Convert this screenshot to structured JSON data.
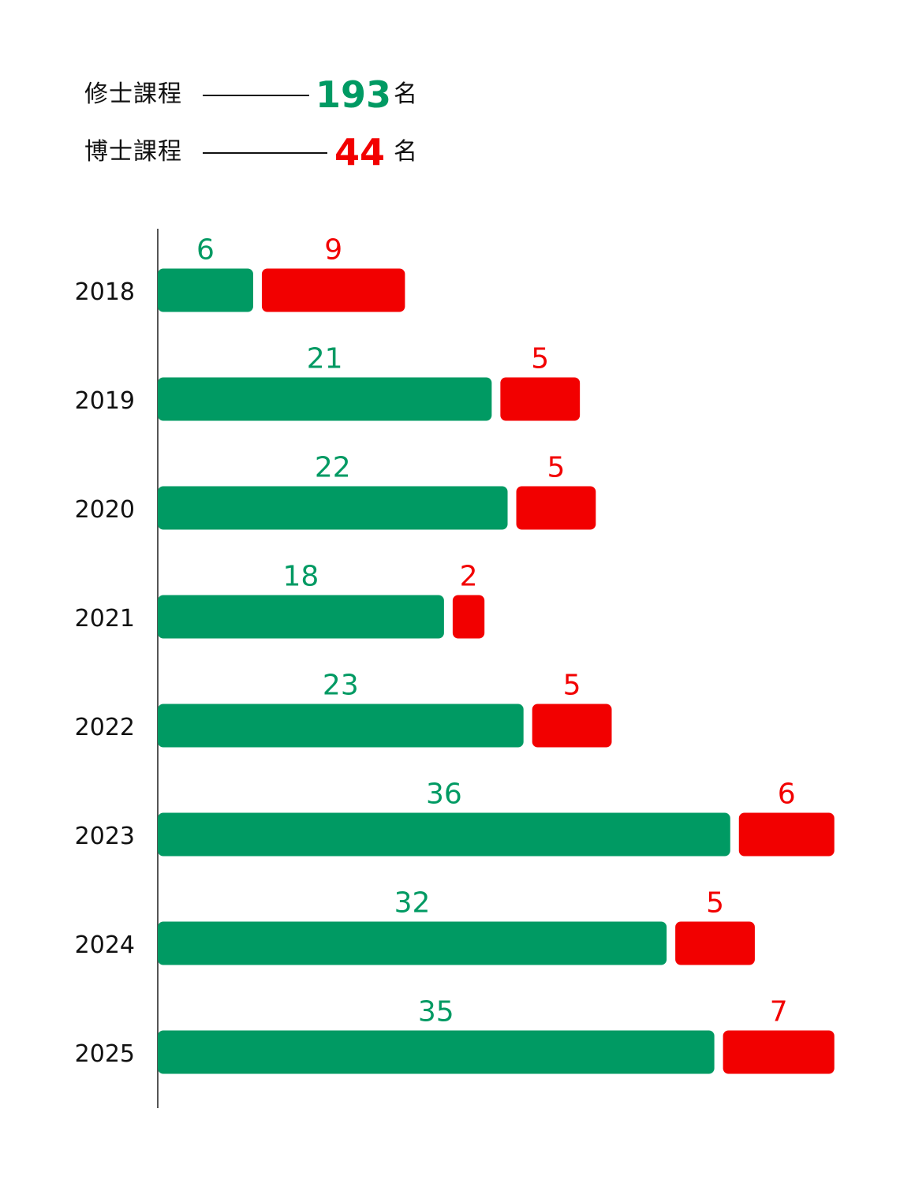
{
  "legend": [
    {
      "label": "修士課程",
      "total": "193",
      "unit": "名",
      "color": "#009a63"
    },
    {
      "label": "博士課程",
      "total": "44",
      "unit": "名",
      "color": "#f20000"
    }
  ],
  "chart_data": {
    "type": "bar",
    "orientation": "horizontal-stacked",
    "categories": [
      "2018",
      "2019",
      "2020",
      "2021",
      "2022",
      "2023",
      "2024",
      "2025"
    ],
    "series": [
      {
        "name": "修士課程",
        "color": "#009a63",
        "values": [
          6,
          21,
          22,
          18,
          23,
          36,
          32,
          35
        ]
      },
      {
        "name": "博士課程",
        "color": "#f20000",
        "values": [
          9,
          5,
          5,
          2,
          5,
          6,
          5,
          7
        ]
      }
    ]
  }
}
